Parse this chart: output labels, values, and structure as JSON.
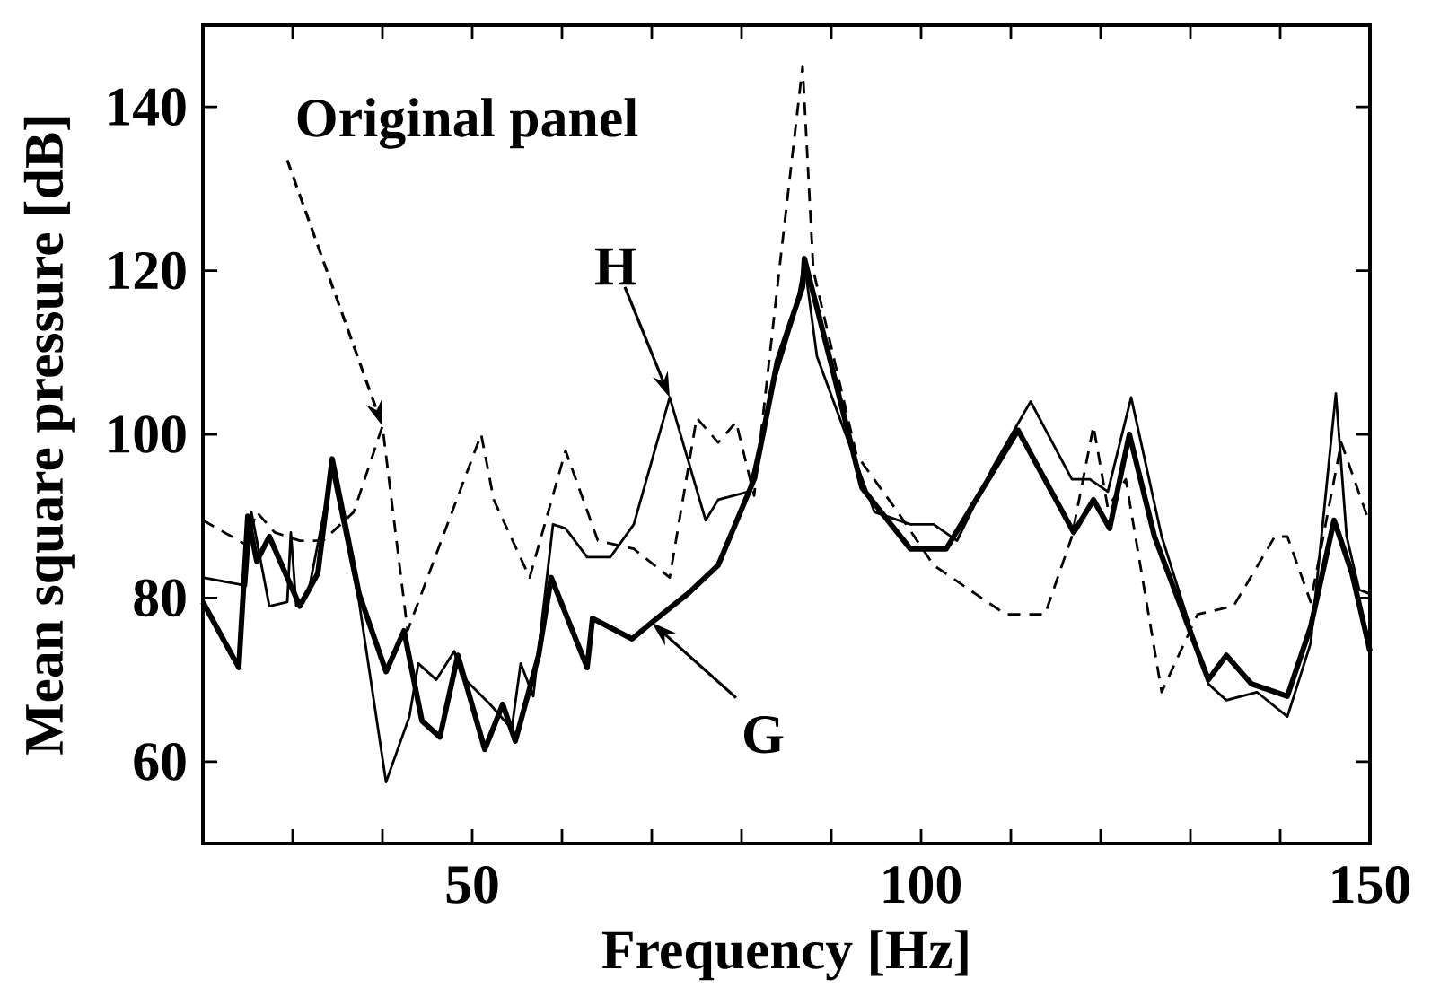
{
  "chart_data": {
    "type": "line",
    "xlabel": "Frequency [Hz]",
    "ylabel": "Mean square pressure [dB]",
    "xlim": [
      20,
      150
    ],
    "ylim": [
      50,
      150
    ],
    "xticks": [
      {
        "value": 30,
        "label": null
      },
      {
        "value": 40,
        "label": null
      },
      50,
      {
        "value": 60,
        "label": null
      },
      {
        "value": 70,
        "label": null
      },
      {
        "value": 80,
        "label": null
      },
      {
        "value": 90,
        "label": null
      },
      100,
      {
        "value": 110,
        "label": null
      },
      {
        "value": 120,
        "label": null
      },
      {
        "value": 130,
        "label": null
      },
      {
        "value": 140,
        "label": null
      },
      150
    ],
    "yticks": [
      60,
      80,
      100,
      120,
      140
    ],
    "marker": "none",
    "series": [
      {
        "color": "#000000",
        "line_style": "dashed",
        "x": [
          20,
          24.8,
          26,
          28,
          30.8,
          33.4,
          36.8,
          40,
          42.8,
          51,
          52.4,
          56.4,
          60.4,
          64,
          68,
          72,
          75,
          77.4,
          79.4,
          81.4,
          84.4,
          86.8,
          88,
          92.8,
          97.4,
          101.4,
          109.4,
          113.8,
          116.8,
          119.2,
          120.8,
          122.8,
          126.8,
          130.8,
          134.8,
          139.4,
          140.8,
          143.4,
          146.8,
          150
        ],
        "values": [
          89.5,
          86.5,
          90.5,
          88,
          87,
          87,
          90.5,
          101,
          76,
          100,
          92,
          82.5,
          98,
          87,
          86,
          82.5,
          102,
          99,
          101.5,
          92.5,
          122,
          145,
          120,
          97.5,
          90.5,
          84,
          78,
          78,
          87.5,
          101,
          91,
          94.5,
          68.5,
          78,
          79,
          87.5,
          87.5,
          79.5,
          99,
          89
        ]
      },
      {
        "color": "#000000",
        "line_style": "solid",
        "x": [
          20,
          24.8,
          25.4,
          27.4,
          29.4,
          29.8,
          30.4,
          31.8,
          34.4,
          37.4,
          40.4,
          43,
          44,
          46,
          48,
          48.8,
          52,
          54.4,
          55.4,
          56.8,
          59,
          60.4,
          62.8,
          65.4,
          68,
          72,
          76,
          77.4,
          80.8,
          83.4,
          86,
          87,
          88.4,
          94.8,
          98.8,
          101.4,
          104,
          108,
          112.2,
          116.8,
          118.8,
          120.8,
          123.4,
          126.8,
          132,
          134,
          137.4,
          140.8,
          143.4,
          146.2,
          147.4,
          148.8,
          150
        ],
        "values": [
          82.5,
          81.5,
          90.5,
          79,
          79.5,
          88,
          79,
          81,
          95.5,
          79.5,
          57.5,
          65.5,
          72,
          70,
          73.5,
          70.5,
          67,
          64,
          72,
          68,
          89,
          88.5,
          85,
          85,
          89,
          104.5,
          89.5,
          92,
          93,
          105.5,
          115,
          121,
          109.5,
          90.5,
          89,
          89,
          87,
          96,
          104,
          94.5,
          94.5,
          93,
          104.5,
          87.5,
          69.5,
          67.5,
          68.5,
          65.5,
          74.5,
          105,
          87.5,
          81,
          80.5
        ]
      },
      {
        "color": "#000000",
        "line_style": "solid",
        "x": [
          20,
          24,
          25,
          26,
          27.4,
          30.8,
          32.8,
          34.4,
          37.4,
          40.4,
          42.4,
          44.4,
          46.4,
          48.4,
          51.4,
          53.4,
          54.8,
          57.4,
          58.8,
          62.8,
          63.4,
          67.8,
          70,
          74,
          77.4,
          81.4,
          84,
          86.8,
          87,
          90,
          93.4,
          98.8,
          102.8,
          110.8,
          117,
          119.2,
          121,
          123.2,
          126,
          132,
          134,
          136.8,
          140.8,
          143.4,
          146,
          148,
          150
        ],
        "values": [
          79.5,
          71.5,
          90,
          84.5,
          87.5,
          79,
          83,
          97,
          80.5,
          71,
          76,
          65,
          63,
          73,
          61.5,
          67,
          62.5,
          73,
          82.5,
          71.5,
          77.5,
          75,
          77,
          80.5,
          84,
          94.5,
          109,
          118,
          121.5,
          108.5,
          93.5,
          86,
          86,
          100.5,
          88,
          92,
          88.5,
          100,
          87.5,
          70,
          73,
          69.5,
          68,
          76.5,
          89.5,
          83,
          73.5
        ]
      }
    ],
    "annotations": [
      {
        "text": "Original panel",
        "x": 40,
        "y": 101
      },
      {
        "text": "H",
        "x": 72,
        "y": 104.5
      },
      {
        "text": "G",
        "x": 70,
        "y": 77
      }
    ]
  }
}
